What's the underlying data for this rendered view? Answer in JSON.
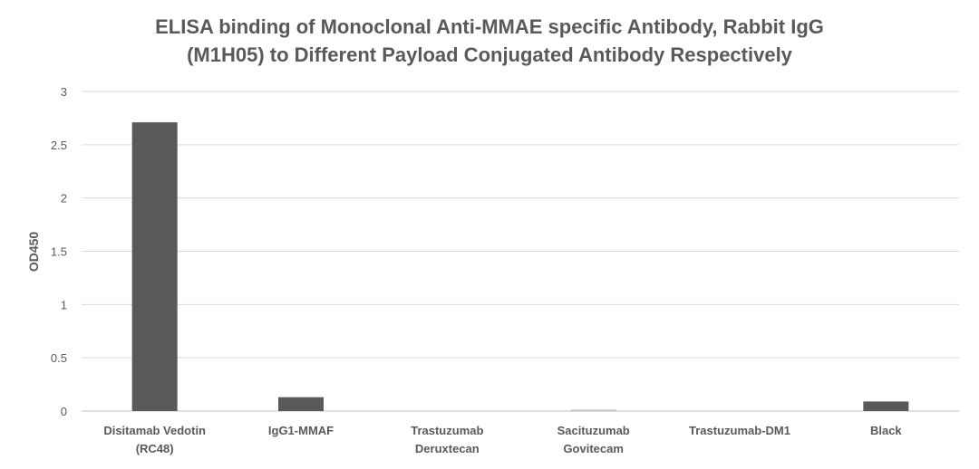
{
  "chart_data": {
    "type": "bar",
    "title_lines": [
      "ELISA binding of Monoclonal Anti-MMAE specific Antibody, Rabbit IgG",
      "(M1H05) to Different Payload Conjugated Antibody Respectively"
    ],
    "xlabel": "",
    "ylabel": "OD450",
    "ylim": [
      0,
      3
    ],
    "yticks": [
      "0",
      "0.5",
      "1",
      "1.5",
      "2",
      "2.5",
      "3"
    ],
    "categories": [
      [
        "Disitamab Vedotin",
        "(RC48)"
      ],
      [
        "IgG1-MMAF"
      ],
      [
        "Trastuzumab",
        "Deruxtecan"
      ],
      [
        "Sacituzumab",
        "Govitecam"
      ],
      [
        "Trastuzumab-DM1"
      ],
      [
        "Black"
      ]
    ],
    "values": [
      2.71,
      0.13,
      0.0,
      0.01,
      0.0,
      0.09
    ],
    "grid": true,
    "legend": "none",
    "colors": {
      "bar": "#595959",
      "grid": "#d9d9d9",
      "text": "#595959"
    }
  }
}
